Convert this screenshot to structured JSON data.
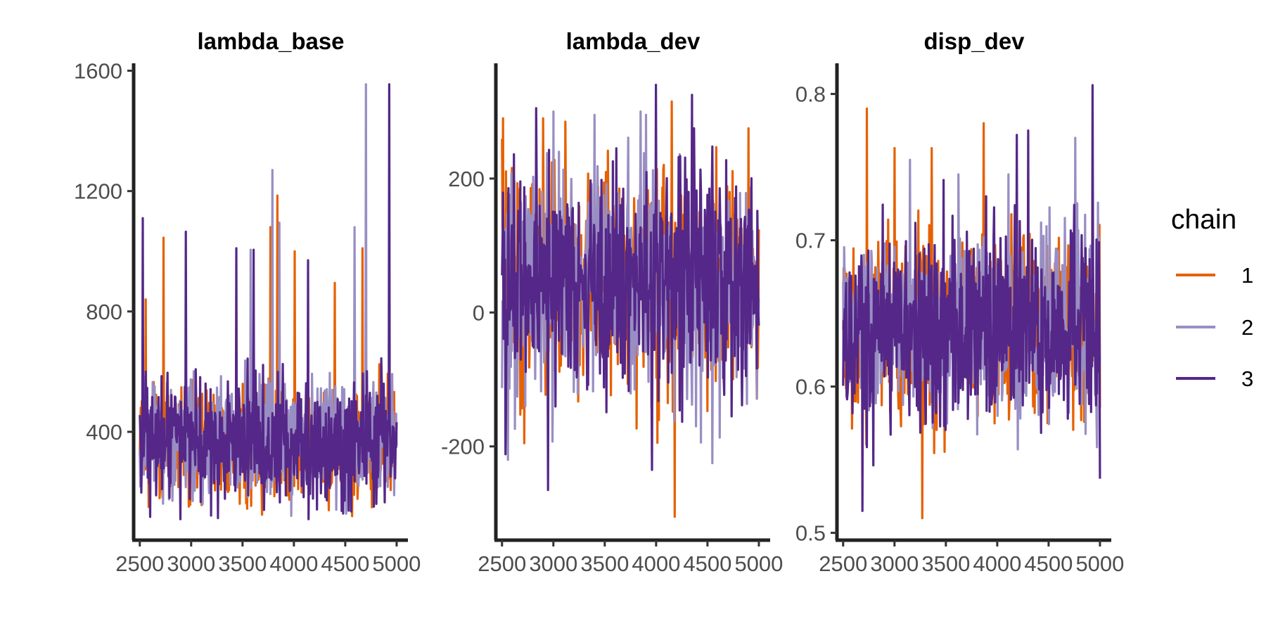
{
  "legend": {
    "title": "chain",
    "entries": [
      {
        "label": "1",
        "color": "#e66101"
      },
      {
        "label": "2",
        "color": "#998ec3"
      },
      {
        "label": "3",
        "color": "#542788"
      }
    ]
  },
  "chart_data": [
    {
      "type": "line",
      "title": "lambda_base",
      "xlabel": "",
      "ylabel": "",
      "x_range": [
        2500,
        5000
      ],
      "xlim": [
        2440,
        5110
      ],
      "xticks": [
        2500,
        3000,
        3500,
        4000,
        4500,
        5000
      ],
      "xtick_labels": [
        "2500",
        "3000",
        "3500",
        "4000",
        "4500",
        "5000"
      ],
      "ylim": [
        40,
        1620
      ],
      "yticks": [
        400,
        800,
        1200,
        1600
      ],
      "ytick_labels": [
        "400",
        "800",
        "1200",
        "1600"
      ],
      "grid": false,
      "series": [
        {
          "name": "1",
          "center": 370,
          "spread": 95,
          "min": 120,
          "max": 1190,
          "spikes": [
            [
              2560,
              840
            ],
            [
              2730,
              1045
            ],
            [
              3770,
              1080
            ],
            [
              3840,
              1185
            ],
            [
              4010,
              1000
            ],
            [
              4670,
              1010
            ],
            [
              4400,
              895
            ]
          ]
        },
        {
          "name": "2",
          "center": 370,
          "spread": 95,
          "min": 110,
          "max": 1555,
          "spikes": [
            [
              3580,
              1005
            ],
            [
              3790,
              1270
            ],
            [
              3860,
              1095
            ],
            [
              4590,
              1080
            ],
            [
              4700,
              1555
            ]
          ]
        },
        {
          "name": "3",
          "center": 370,
          "spread": 100,
          "min": 110,
          "max": 1555,
          "spikes": [
            [
              2530,
              1110
            ],
            [
              2950,
              1065
            ],
            [
              3440,
              1010
            ],
            [
              3610,
              1005
            ],
            [
              4140,
              970
            ],
            [
              4930,
              1555
            ]
          ]
        }
      ]
    },
    {
      "type": "line",
      "title": "lambda_dev",
      "xlabel": "",
      "ylabel": "",
      "x_range": [
        2500,
        5000
      ],
      "xlim": [
        2440,
        5110
      ],
      "xticks": [
        2500,
        3000,
        3500,
        4000,
        4500,
        5000
      ],
      "xtick_labels": [
        "2500",
        "3000",
        "3500",
        "4000",
        "4500",
        "5000"
      ],
      "ylim": [
        -340,
        370
      ],
      "yticks": [
        -200,
        0,
        200
      ],
      "ytick_labels": [
        "-200",
        "0",
        "200"
      ],
      "grid": false,
      "series": [
        {
          "name": "1",
          "center": 50,
          "spread": 80,
          "min": -305,
          "max": 315,
          "spikes": [
            [
              2510,
              290
            ],
            [
              2900,
              290
            ],
            [
              4150,
              315
            ],
            [
              4180,
              -305
            ],
            [
              4900,
              275
            ]
          ]
        },
        {
          "name": "2",
          "center": 50,
          "spread": 80,
          "min": -225,
          "max": 300,
          "spikes": [
            [
              2560,
              -220
            ],
            [
              3000,
              300
            ],
            [
              3400,
              295
            ],
            [
              3900,
              295
            ],
            [
              4390,
              -170
            ]
          ]
        },
        {
          "name": "3",
          "center": 50,
          "spread": 85,
          "min": -265,
          "max": 340,
          "spikes": [
            [
              2830,
              305
            ],
            [
              2950,
              -265
            ],
            [
              4000,
              340
            ],
            [
              3960,
              -235
            ],
            [
              4350,
              325
            ]
          ]
        }
      ]
    },
    {
      "type": "line",
      "title": "disp_dev",
      "xlabel": "",
      "ylabel": "",
      "x_range": [
        2500,
        5000
      ],
      "xlim": [
        2440,
        5110
      ],
      "xticks": [
        2500,
        3000,
        3500,
        4000,
        4500,
        5000
      ],
      "xtick_labels": [
        "2500",
        "3000",
        "3500",
        "4000",
        "4500",
        "5000"
      ],
      "ylim": [
        0.495,
        0.82
      ],
      "yticks": [
        0.5,
        0.6,
        0.7,
        0.8
      ],
      "ytick_labels": [
        "0.5",
        "0.6",
        "0.7",
        "0.8"
      ],
      "grid": false,
      "series": [
        {
          "name": "1",
          "center": 0.64,
          "spread": 0.03,
          "min": 0.51,
          "max": 0.79,
          "spikes": [
            [
              2730,
              0.79
            ],
            [
              3000,
              0.763
            ],
            [
              3270,
              0.51
            ],
            [
              3360,
              0.763
            ],
            [
              3870,
              0.78
            ]
          ]
        },
        {
          "name": "2",
          "center": 0.64,
          "spread": 0.03,
          "min": 0.535,
          "max": 0.77,
          "spikes": [
            [
              3150,
              0.755
            ],
            [
              3620,
              0.745
            ],
            [
              4110,
              0.745
            ],
            [
              4760,
              0.77
            ]
          ]
        },
        {
          "name": "3",
          "center": 0.64,
          "spread": 0.032,
          "min": 0.515,
          "max": 0.806,
          "spikes": [
            [
              2690,
              0.515
            ],
            [
              4300,
              0.775
            ],
            [
              4190,
              0.772
            ],
            [
              4930,
              0.806
            ],
            [
              5000,
              0.537
            ]
          ]
        }
      ]
    }
  ]
}
